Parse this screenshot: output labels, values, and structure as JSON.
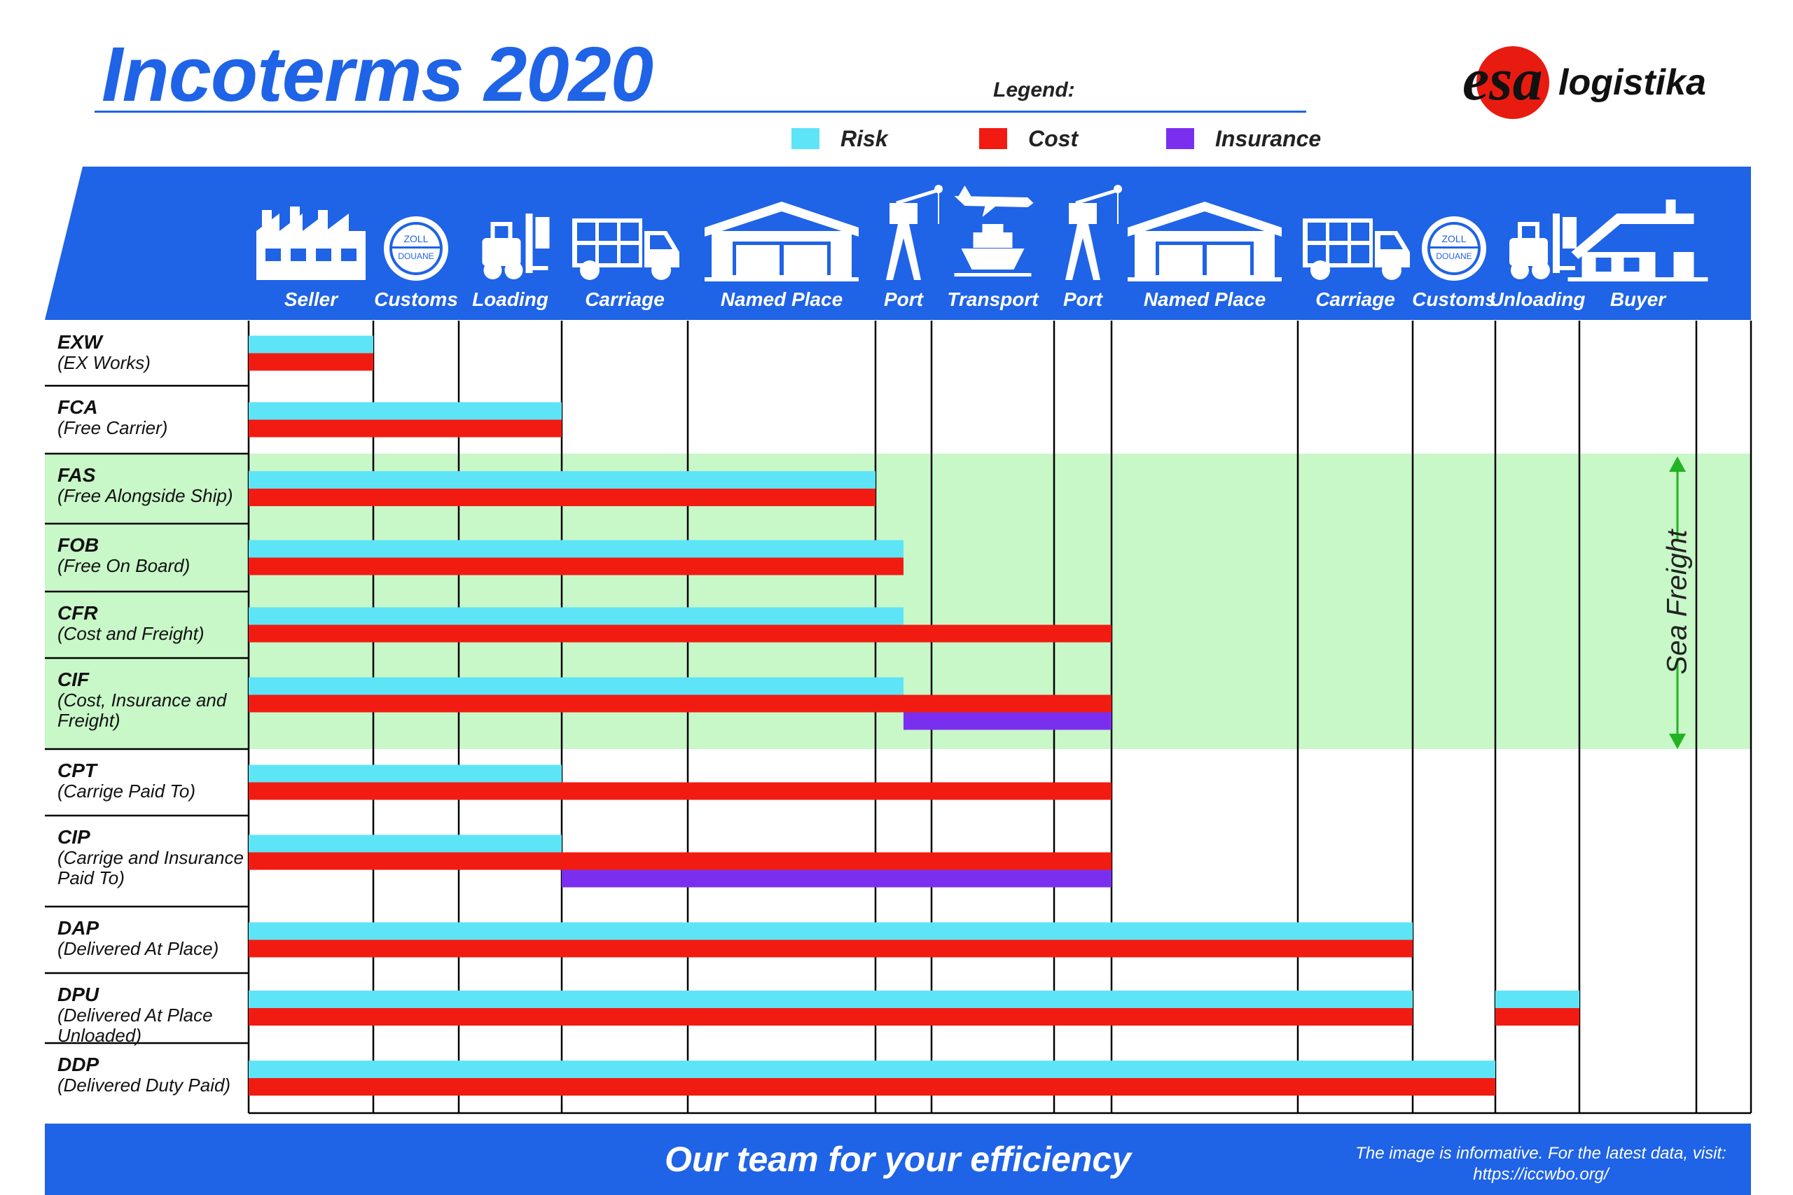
{
  "title": "Incoterms 2020",
  "legend": {
    "title": "Legend:",
    "items": [
      {
        "label": "Risk",
        "color": "#5ee4f7"
      },
      {
        "label": "Cost",
        "color": "#f21b12"
      },
      {
        "label": "Insurance",
        "color": "#7b2fee"
      }
    ]
  },
  "logo": {
    "mark": "esa",
    "text": "logistika"
  },
  "stages": [
    {
      "label": "Seller",
      "icon": "factory-icon"
    },
    {
      "label": "Customs",
      "icon": "customs-stamp-icon"
    },
    {
      "label": "Loading",
      "icon": "forklift-icon"
    },
    {
      "label": "Carriage",
      "icon": "truck-icon"
    },
    {
      "label": "Named Place",
      "icon": "warehouse-icon"
    },
    {
      "label": "Port",
      "icon": "crane-icon"
    },
    {
      "label": "Transport",
      "icon": "plane-ship-icon"
    },
    {
      "label": "Port",
      "icon": "crane-icon"
    },
    {
      "label": "Named Place",
      "icon": "warehouse-icon"
    },
    {
      "label": "Carriage",
      "icon": "truck-icon"
    },
    {
      "label": "Customs",
      "icon": "customs-stamp-icon"
    },
    {
      "label": "Unloading",
      "icon": "forklift-icon"
    },
    {
      "label": "Buyer",
      "icon": "house-icon"
    }
  ],
  "stamp_text": [
    "ZOLL",
    "DOUANE"
  ],
  "terms": [
    {
      "code": "EXW",
      "desc": "(EX Works)",
      "risk": [
        0,
        1
      ],
      "cost": [
        0,
        1
      ],
      "insurance": null
    },
    {
      "code": "FCA",
      "desc": "(Free Carrier)",
      "risk": [
        0,
        3
      ],
      "cost": [
        0,
        3
      ],
      "insurance": null
    },
    {
      "code": "FAS",
      "desc": "(Free Alongside Ship)",
      "risk": [
        0,
        5
      ],
      "cost": [
        0,
        5
      ],
      "insurance": null
    },
    {
      "code": "FOB",
      "desc": "(Free On Board)",
      "risk": [
        0,
        5.5
      ],
      "cost": [
        0,
        5.5
      ],
      "insurance": null
    },
    {
      "code": "CFR",
      "desc": "(Cost and Freight)",
      "risk": [
        0,
        5.5
      ],
      "cost": [
        0,
        8
      ],
      "insurance": null
    },
    {
      "code": "CIF",
      "desc": "(Cost, Insurance and Freight)",
      "risk": [
        0,
        5.5
      ],
      "cost": [
        0,
        8
      ],
      "insurance": [
        5.5,
        8
      ]
    },
    {
      "code": "CPT",
      "desc": "(Carrige Paid To)",
      "risk": [
        0,
        3
      ],
      "cost": [
        0,
        8
      ],
      "insurance": null
    },
    {
      "code": "CIP",
      "desc": "(Carrige and Insurance Paid To)",
      "risk": [
        0,
        3
      ],
      "cost": [
        0,
        8
      ],
      "insurance": [
        3,
        8
      ]
    },
    {
      "code": "DAP",
      "desc": "(Delivered At Place)",
      "risk": [
        0,
        10
      ],
      "cost": [
        0,
        10
      ],
      "insurance": null
    },
    {
      "code": "DPU",
      "desc": "(Delivered At Place Unloaded)",
      "risk": [
        0,
        10
      ],
      "cost": [
        0,
        10
      ],
      "insurance": null,
      "extra_risk": [
        11,
        12
      ],
      "extra_cost": [
        11,
        12
      ]
    },
    {
      "code": "DDP",
      "desc": "(Delivered Duty Paid)",
      "risk": [
        0,
        11
      ],
      "cost": [
        0,
        11
      ],
      "insurance": null
    }
  ],
  "sea_freight": {
    "label": "Sea Freight",
    "rows": [
      "FAS",
      "FOB",
      "CFR",
      "CIF"
    ],
    "color": "#c8f7c8"
  },
  "footer": {
    "tagline": "Our team for your efficiency",
    "disclaimer": "The image is informative. For the latest data, visit: https://iccwbo.org/"
  },
  "colors": {
    "brand_blue": "#1f63e6",
    "risk": "#5ee4f7",
    "cost": "#f21b12",
    "insurance": "#7b2fee"
  }
}
